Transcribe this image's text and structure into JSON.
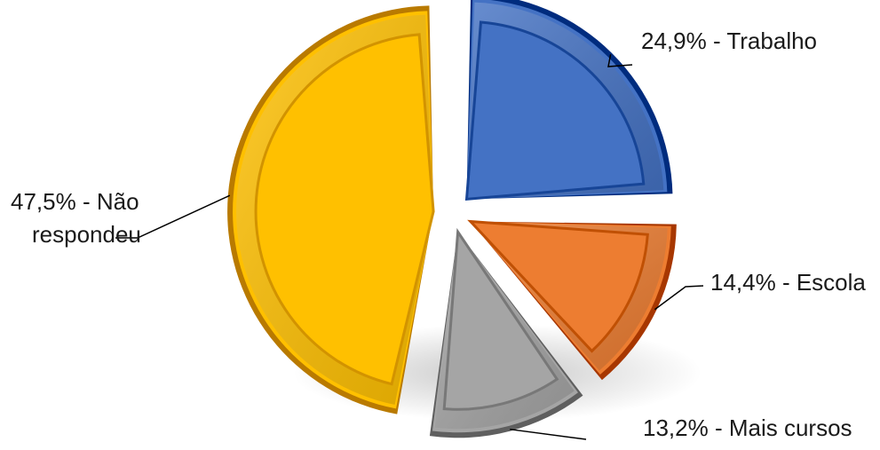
{
  "chart_data": {
    "type": "pie",
    "exploded": true,
    "style": "3d-bevel",
    "slices": [
      {
        "value": 24.9,
        "label": "24,9% - Trabalho",
        "color": "#4472C4"
      },
      {
        "value": 14.4,
        "label": "14,4% - Escola",
        "color": "#ED7D31"
      },
      {
        "value": 13.2,
        "label": "13,2%  - Mais cursos",
        "color": "#A5A5A5"
      },
      {
        "value": 47.5,
        "label_lines": [
          "47,5% - Não",
          "respondeu"
        ],
        "color": "#FFC000"
      }
    ]
  }
}
